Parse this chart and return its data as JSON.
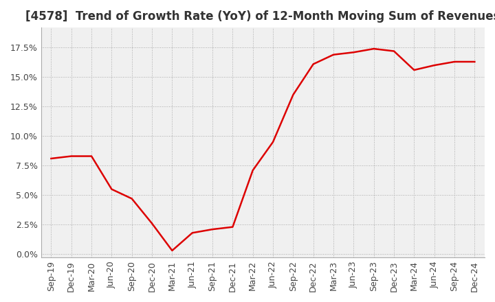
{
  "title": "[4578]  Trend of Growth Rate (YoY) of 12-Month Moving Sum of Revenues",
  "title_fontsize": 12,
  "background_color": "#ffffff",
  "plot_bg_color": "#f0f0f0",
  "line_color": "#dd0000",
  "line_width": 1.8,
  "ylim": [
    -0.003,
    0.192
  ],
  "yticks": [
    0.0,
    0.025,
    0.05,
    0.075,
    0.1,
    0.125,
    0.15,
    0.175
  ],
  "ytick_labels": [
    "0.0%",
    "2.5%",
    "5.0%",
    "7.5%",
    "10.0%",
    "12.5%",
    "15.0%",
    "17.5%"
  ],
  "x_labels": [
    "Sep-19",
    "Dec-19",
    "Mar-20",
    "Jun-20",
    "Sep-20",
    "Dec-20",
    "Mar-21",
    "Jun-21",
    "Sep-21",
    "Dec-21",
    "Mar-22",
    "Jun-22",
    "Sep-22",
    "Dec-22",
    "Mar-23",
    "Jun-23",
    "Sep-23",
    "Dec-23",
    "Mar-24",
    "Jun-24",
    "Sep-24",
    "Dec-24"
  ],
  "values": [
    0.081,
    0.083,
    0.083,
    0.055,
    0.047,
    0.026,
    0.003,
    0.018,
    0.021,
    0.023,
    0.071,
    0.095,
    0.135,
    0.161,
    0.169,
    0.171,
    0.174,
    0.172,
    0.156,
    0.16,
    0.163,
    0.163
  ],
  "grid_color": "#aaaaaa",
  "grid_linestyle": "dotted",
  "tick_color": "#444444",
  "tick_fontsize": 9,
  "title_color": "#333333"
}
